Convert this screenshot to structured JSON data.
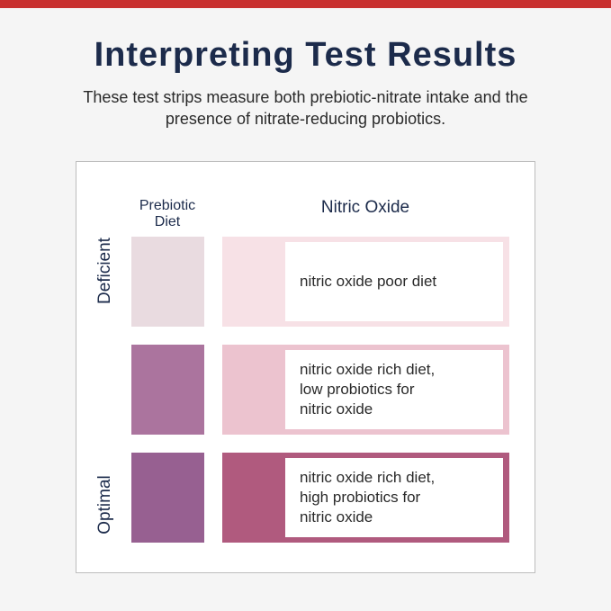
{
  "header": {
    "title": "Interpreting Test Results",
    "subtitle": "These test strips measure both prebiotic-nitrate intake and the presence of nitrate-reducing probiotics."
  },
  "chart": {
    "column_headers": {
      "prebiotic": "Prebiotic Diet",
      "nitric_oxide": "Nitric Oxide"
    },
    "side_labels": {
      "top": "Deficient",
      "bottom": "Optimal"
    },
    "rows": [
      {
        "result": "nitric oxide poor diet",
        "prebiotic_color": "#e9dbe0",
        "strip_color": "#f7e1e6"
      },
      {
        "result": "nitric oxide rich diet,\nlow probiotics for\nnitric oxide",
        "prebiotic_color": "#ab749e",
        "strip_color": "#ecc3cf"
      },
      {
        "result": "nitric oxide rich diet,\nhigh probiotics for\nnitric oxide",
        "prebiotic_color": "#976091",
        "strip_color": "#b05a7e"
      }
    ]
  },
  "colors": {
    "accent_bar": "#c8302f",
    "title": "#1c2b4b"
  }
}
